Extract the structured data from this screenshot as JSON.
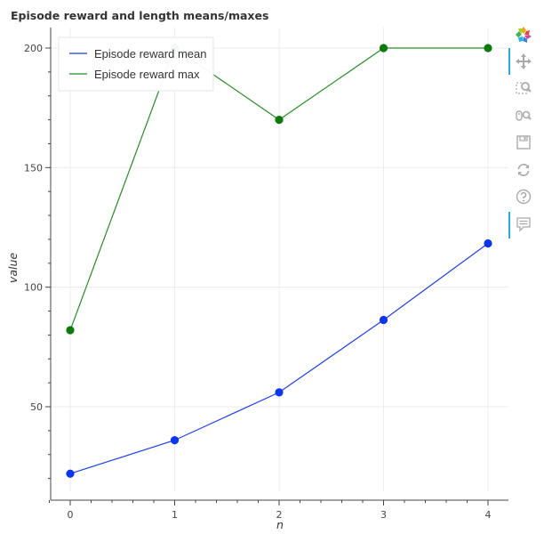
{
  "chart_data": {
    "type": "line",
    "title": "Episode reward and length means/maxes",
    "xlabel": "n",
    "ylabel": "value",
    "x": [
      0,
      1,
      2,
      3,
      4
    ],
    "xlim": [
      -0.2,
      4.2
    ],
    "ylim": [
      15,
      208
    ],
    "x_ticks": [
      0,
      1,
      2,
      3,
      4
    ],
    "y_ticks": [
      50,
      100,
      150,
      200
    ],
    "grid": true,
    "legend_position": "top-left",
    "series": [
      {
        "name": "Episode reward mean",
        "values": [
          22,
          36,
          56,
          86.3,
          118.3
        ],
        "color": "#1f3fe0",
        "marker_color": "#0b35ee"
      },
      {
        "name": "Episode reward max",
        "values": [
          82,
          200,
          170,
          200,
          200
        ],
        "color": "#2a8a2a",
        "marker_color": "#0b7a0b"
      }
    ]
  },
  "toolbar": {
    "tools": [
      {
        "name": "bokeh-logo-icon",
        "interactable": false
      },
      {
        "name": "pan-icon",
        "interactable": true,
        "active": true
      },
      {
        "name": "box-zoom-icon",
        "interactable": true
      },
      {
        "name": "wheel-zoom-icon",
        "interactable": true
      },
      {
        "name": "save-icon",
        "interactable": true
      },
      {
        "name": "reset-icon",
        "interactable": true
      },
      {
        "name": "help-icon",
        "interactable": true
      },
      {
        "name": "hover-icon",
        "interactable": true,
        "active": true
      }
    ],
    "icon_color": "#aaaaaa",
    "active_color": "#26aae1"
  }
}
